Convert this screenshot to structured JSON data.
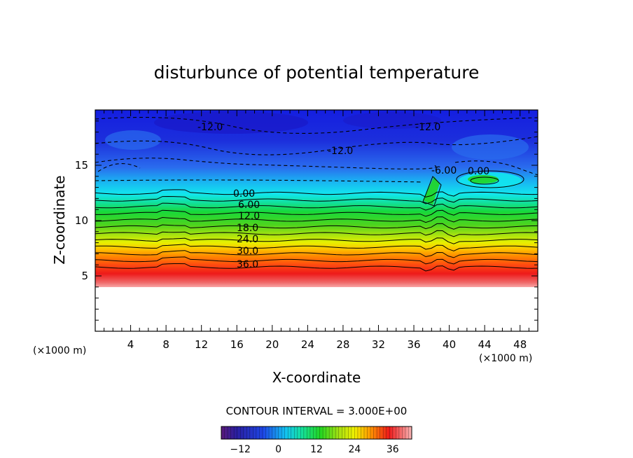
{
  "chart_data": {
    "type": "contour",
    "title": "disturbunce of potential temperature",
    "xlabel": "X-coordinate",
    "ylabel": "Z-coordinate",
    "x_unit": "(×1000 m)",
    "y_unit": "(×1000 m)",
    "xlim": [
      0,
      50
    ],
    "ylim": [
      0,
      20
    ],
    "x_ticks": [
      "4",
      "8",
      "12",
      "16",
      "20",
      "24",
      "28",
      "32",
      "36",
      "40",
      "44",
      "48"
    ],
    "y_ticks": [
      "5",
      "10",
      "15"
    ],
    "contour_interval_text": "CONTOUR INTERVAL = 3.000E+00",
    "contour_labels": [
      "-12.0",
      "-12.0",
      "-12.0",
      "-6.00",
      "0.00",
      "0.00",
      "6.00",
      "12.0",
      "18.0",
      "24.0",
      "30.0",
      "36.0"
    ],
    "colorbar": {
      "min": -18,
      "max": 42,
      "ticks": [
        "-12",
        "0",
        "12",
        "24",
        "36"
      ]
    },
    "colors": {
      "cold": "#1a2fd8",
      "cyan": "#16e0f0",
      "green": "#22d622",
      "yellow": "#e8f000",
      "orange": "#ff8a00",
      "red": "#ee1a1a",
      "pink": "#f79a9a"
    }
  }
}
